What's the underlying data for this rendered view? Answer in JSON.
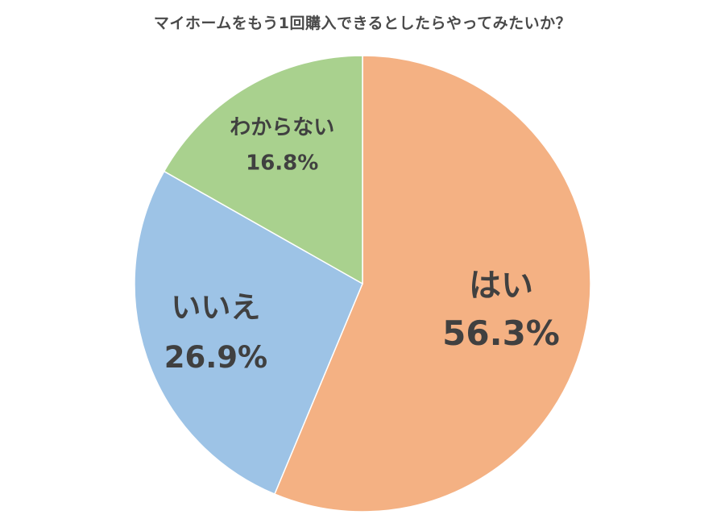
{
  "chart_data": {
    "type": "pie",
    "title": "マイホームをもう1回購入できるとしたらやってみたいか？",
    "start_angle_deg": 0,
    "direction": "clockwise",
    "slices": [
      {
        "label": "はい",
        "value": 56.3,
        "value_text": "56.3%",
        "color": "#f4b183"
      },
      {
        "label": "いいえ",
        "value": 26.9,
        "value_text": "26.9%",
        "color": "#9dc3e6"
      },
      {
        "label": "わからない",
        "value": 16.8,
        "value_text": "16.8%",
        "color": "#a9d18e"
      }
    ]
  }
}
